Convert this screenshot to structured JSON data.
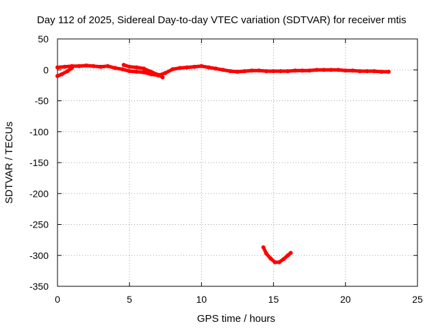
{
  "chart_data": {
    "type": "line",
    "title": "Day 112 of 2025, Sidereal Day-to-day VTEC variation (SDTVAR) for receiver mtis",
    "xlabel": "GPS time / hours",
    "ylabel": "SDTVAR / TECUs",
    "xlim": [
      0,
      25
    ],
    "ylim": [
      -350,
      50
    ],
    "xticks": [
      0,
      5,
      10,
      15,
      20,
      25
    ],
    "yticks": [
      50,
      0,
      -50,
      -100,
      -150,
      -200,
      -250,
      -300,
      -350
    ],
    "grid": true,
    "series_color": "#ff0000",
    "series": [
      {
        "x": [
          0.0,
          0.5,
          1.0,
          1.5,
          2.0,
          2.5,
          3.0,
          3.5,
          4.0,
          4.5,
          5.0,
          5.5,
          6.0,
          6.5,
          7.0,
          7.5,
          8.0,
          8.5,
          9.0,
          9.5,
          10.0,
          10.5,
          11.0,
          11.5,
          12.0,
          12.5,
          13.0,
          13.5,
          14.0,
          14.5,
          15.0,
          15.5,
          16.0,
          16.5,
          17.0,
          17.5,
          18.0,
          18.5,
          19.0,
          19.5,
          20.0,
          20.5,
          21.0,
          21.5,
          22.0,
          22.5,
          23.0
        ],
        "values": [
          4,
          5,
          6,
          6,
          7,
          6,
          5,
          6,
          3,
          1,
          -2,
          -3,
          -4,
          -7,
          -9,
          -5,
          1,
          3,
          4,
          5,
          6,
          4,
          2,
          0,
          -2,
          -3,
          -2,
          -1,
          -1,
          -2,
          -2,
          -2,
          -2,
          -1,
          -1,
          -1,
          0,
          0,
          0,
          0,
          -1,
          -1,
          -2,
          -2,
          -2,
          -3,
          -3
        ]
      },
      {
        "x": [
          4.6,
          5.0,
          5.5,
          6.0,
          6.5,
          7.0,
          7.3
        ],
        "values": [
          8,
          5,
          4,
          2,
          -3,
          -8,
          -12
        ]
      },
      {
        "x": [
          0.0,
          0.3,
          0.7,
          1.0
        ],
        "values": [
          -10,
          -7,
          -2,
          3
        ]
      },
      {
        "x": [
          14.3,
          14.5,
          14.8,
          15.1,
          15.4,
          15.7,
          16.0,
          16.2
        ],
        "values": [
          -287,
          -297,
          -305,
          -311,
          -311,
          -306,
          -300,
          -296
        ]
      }
    ]
  }
}
